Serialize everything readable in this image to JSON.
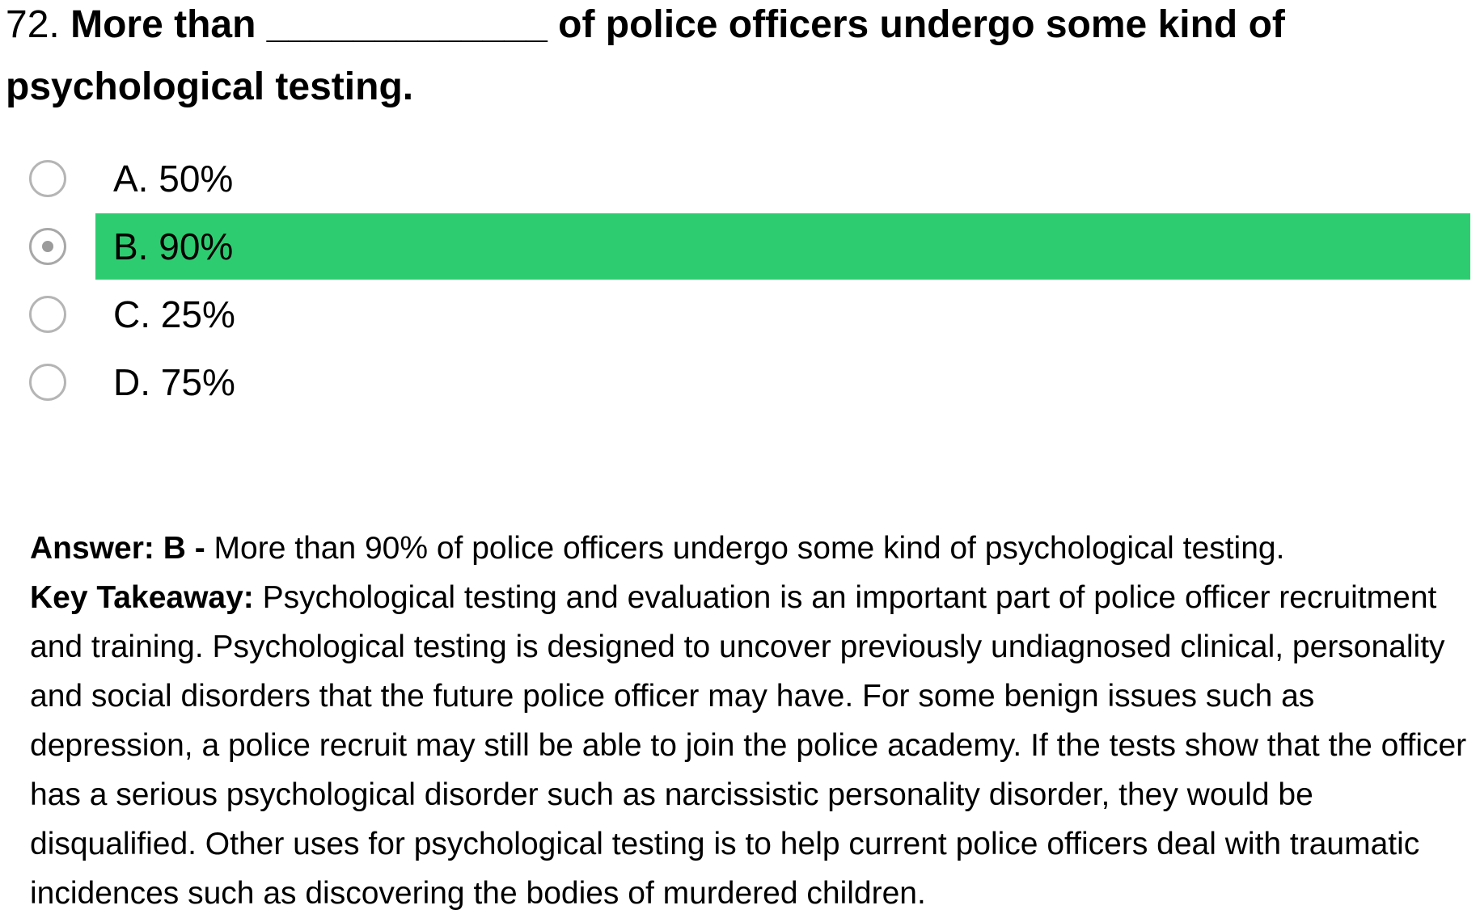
{
  "question": {
    "number": "72.",
    "text": "More than _____________ of police officers undergo some kind of psychological testing."
  },
  "options": [
    {
      "label": "A. 50%",
      "selected": false,
      "correct": false
    },
    {
      "label": "B. 90%",
      "selected": true,
      "correct": true
    },
    {
      "label": "C. 25%",
      "selected": false,
      "correct": false
    },
    {
      "label": "D. 75%",
      "selected": false,
      "correct": false
    }
  ],
  "explanation": {
    "answer_label": "Answer: B -",
    "answer_text": "More than 90% of police officers undergo some kind of psychological testing.",
    "takeaway_label": "Key Takeaway:",
    "takeaway_text": "Psychological testing and evaluation is an important part of police officer recruitment and training. Psychological testing is designed to uncover previously undiagnosed clinical, personality and social disorders that the future police officer may have. For some benign issues such as depression, a police recruit may still be able to join the police academy. If the tests show that the officer has a serious psychological disorder such as narcissistic personality disorder, they would be disqualified. Other uses for psychological testing is to help current police officers deal with traumatic incidences such as discovering the bodies of murdered children."
  },
  "colors": {
    "correct_highlight": "#2ecc71",
    "radio_border": "#b5b5b5",
    "radio_dot": "#9b9b9b"
  }
}
